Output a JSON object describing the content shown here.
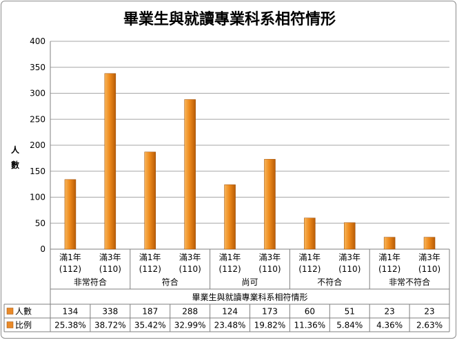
{
  "chart_data": {
    "type": "bar",
    "title": "畢業生與就讀專業科系相符情形",
    "xlabel": "畢業生與就讀專業科系相符情形",
    "ylabel": "人數",
    "ylim": [
      0,
      400
    ],
    "yticks": [
      0,
      50,
      100,
      150,
      200,
      250,
      300,
      350,
      400
    ],
    "grid": true,
    "groups": [
      {
        "name": "非常符合",
        "categories": [
          {
            "line1": "滿1年",
            "line2": "(112)"
          },
          {
            "line1": "滿3年",
            "line2": "(110)"
          }
        ]
      },
      {
        "name": "符合",
        "categories": [
          {
            "line1": "滿1年",
            "line2": "(112)"
          },
          {
            "line1": "滿3年",
            "line2": "(110)"
          }
        ]
      },
      {
        "name": "尚可",
        "categories": [
          {
            "line1": "滿1年",
            "line2": "(112)"
          },
          {
            "line1": "滿3年",
            "line2": "(110)"
          }
        ]
      },
      {
        "name": "不符合",
        "categories": [
          {
            "line1": "滿1年",
            "line2": "(112)"
          },
          {
            "line1": "滿3年",
            "line2": "(110)"
          }
        ]
      },
      {
        "name": "非常不符合",
        "categories": [
          {
            "line1": "滿1年",
            "line2": "(112)"
          },
          {
            "line1": "滿3年",
            "line2": "(110)"
          }
        ]
      }
    ],
    "series": [
      {
        "name": "人數",
        "values": [
          134,
          338,
          187,
          288,
          124,
          173,
          60,
          51,
          23,
          23
        ],
        "labels": [
          "134",
          "338",
          "187",
          "288",
          "124",
          "173",
          "60",
          "51",
          "23",
          "23"
        ]
      },
      {
        "name": "比例",
        "values": [
          25.38,
          38.72,
          35.42,
          32.99,
          23.48,
          19.82,
          11.36,
          5.84,
          4.36,
          2.63
        ],
        "labels": [
          "25.38%",
          "38.72%",
          "35.42%",
          "32.99%",
          "23.48%",
          "19.82%",
          "11.36%",
          "5.84%",
          "4.36%",
          "2.63%"
        ]
      }
    ],
    "colors": {
      "bar_light": "#f7b55a",
      "bar_mid": "#ee8a1c",
      "bar_dark": "#b85c06",
      "legend_fill": "#e98a2a"
    }
  }
}
